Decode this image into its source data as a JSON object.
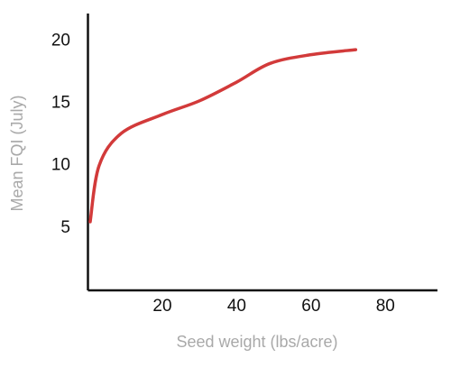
{
  "chart_data": {
    "type": "line",
    "x_label": "Seed weight (lbs/acre)",
    "y_label": "Mean FQI (July)",
    "x": [
      0.6,
      3,
      9,
      20,
      30,
      40,
      49,
      60,
      72
    ],
    "series": [
      {
        "color": "#d23a3a",
        "values": [
          5.5,
          10,
          12.6,
          14.1,
          15.2,
          16.7,
          18.2,
          18.9,
          19.3
        ]
      }
    ],
    "xlim": [
      0,
      94
    ],
    "xticks": [
      20,
      40,
      60,
      80
    ],
    "ylim": [
      0,
      22.2
    ],
    "yticks": [
      5,
      10,
      15,
      20
    ],
    "grid": false
  }
}
